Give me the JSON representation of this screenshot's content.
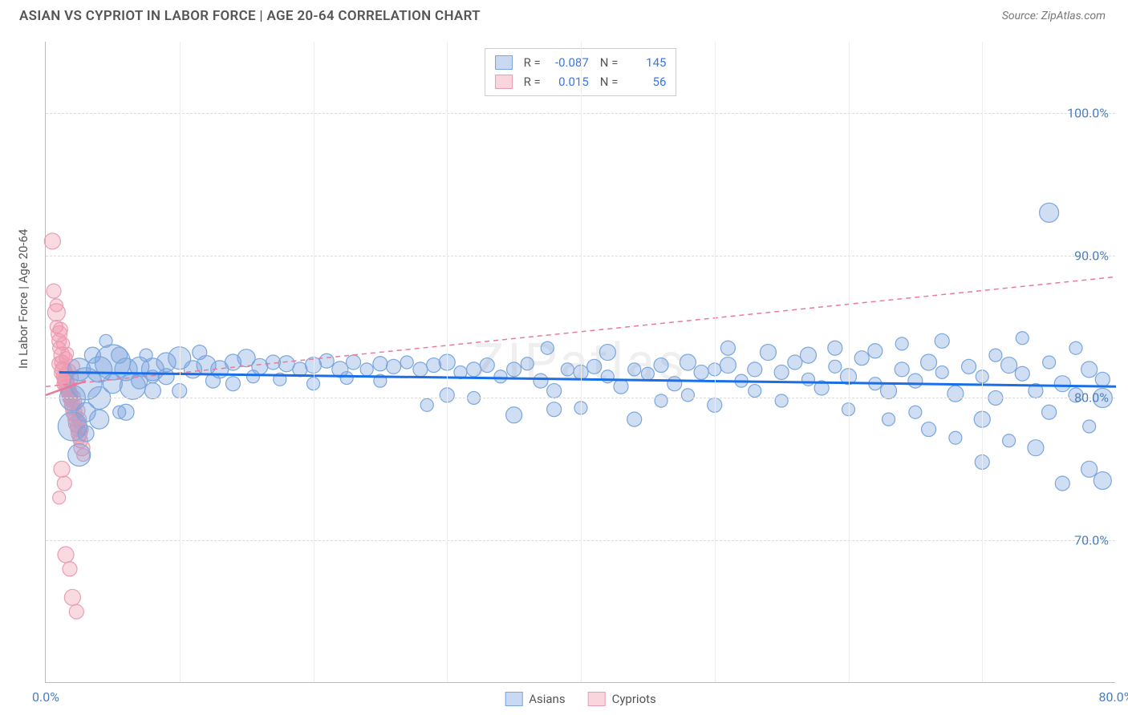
{
  "header": {
    "title": "ASIAN VS CYPRIOT IN LABOR FORCE | AGE 20-64 CORRELATION CHART",
    "source": "Source: ZipAtlas.com"
  },
  "chart": {
    "type": "scatter",
    "yaxis_title": "In Labor Force | Age 20-64",
    "watermark": "ZIPatlas",
    "background_color": "#ffffff",
    "grid_color": "#dddddd",
    "xlim": [
      0,
      80
    ],
    "ylim": [
      60,
      105
    ],
    "yticks": [
      {
        "value": 70.0,
        "label": "70.0%"
      },
      {
        "value": 80.0,
        "label": "80.0%"
      },
      {
        "value": 90.0,
        "label": "90.0%"
      },
      {
        "value": 100.0,
        "label": "100.0%"
      }
    ],
    "xticks": [
      {
        "value": 0.0,
        "label": "0.0%"
      },
      {
        "value": 80.0,
        "label": "80.0%"
      }
    ],
    "xgrid_step": 10,
    "series": [
      {
        "name": "Asians",
        "color_fill": "rgba(120,160,220,0.35)",
        "color_stroke": "#7aa6de",
        "trend_color": "#1a6fe8",
        "trend_dash": "none",
        "r_value": "-0.087",
        "n_value": "145",
        "trend": {
          "x1": 1,
          "y1": 81.8,
          "x2": 80,
          "y2": 80.8
        },
        "points": [
          [
            2,
            78,
            18
          ],
          [
            2,
            80,
            16
          ],
          [
            2.5,
            82,
            14
          ],
          [
            3,
            81,
            20
          ],
          [
            3,
            79,
            12
          ],
          [
            3.5,
            83,
            10
          ],
          [
            4,
            82,
            16
          ],
          [
            4,
            80,
            14
          ],
          [
            4.5,
            84,
            8
          ],
          [
            5,
            82.5,
            22
          ],
          [
            5,
            81,
            12
          ],
          [
            5.5,
            83,
            10
          ],
          [
            6,
            82,
            14
          ],
          [
            6,
            79,
            10
          ],
          [
            6.5,
            80.8,
            16
          ],
          [
            7,
            82.2,
            12
          ],
          [
            7,
            81.2,
            10
          ],
          [
            7.5,
            83,
            8
          ],
          [
            8,
            82,
            14
          ],
          [
            8,
            80.5,
            10
          ],
          [
            9,
            82.5,
            12
          ],
          [
            9,
            81.5,
            10
          ],
          [
            10,
            82.8,
            14
          ],
          [
            10,
            80.5,
            9
          ],
          [
            11,
            82,
            11
          ],
          [
            11.5,
            83.2,
            9
          ],
          [
            12,
            82.3,
            12
          ],
          [
            12.5,
            81.2,
            9
          ],
          [
            13,
            82,
            11
          ],
          [
            14,
            82.5,
            10
          ],
          [
            14,
            81,
            9
          ],
          [
            15,
            82.8,
            11
          ],
          [
            15.5,
            81.5,
            8
          ],
          [
            16,
            82.2,
            10
          ],
          [
            17,
            82.5,
            9
          ],
          [
            17.5,
            81.3,
            8
          ],
          [
            18,
            82.4,
            10
          ],
          [
            19,
            82,
            9
          ],
          [
            20,
            82.3,
            10
          ],
          [
            20,
            81,
            8
          ],
          [
            21,
            82.6,
            9
          ],
          [
            22,
            82,
            10
          ],
          [
            22.5,
            81.4,
            8
          ],
          [
            23,
            82.5,
            9
          ],
          [
            24,
            82,
            8
          ],
          [
            25,
            82.4,
            9
          ],
          [
            25,
            81.2,
            8
          ],
          [
            26,
            82.2,
            9
          ],
          [
            27,
            82.5,
            8
          ],
          [
            28,
            82,
            9
          ],
          [
            28.5,
            79.5,
            8
          ],
          [
            29,
            82.3,
            9
          ],
          [
            30,
            82.5,
            10
          ],
          [
            30,
            80.2,
            9
          ],
          [
            31,
            81.8,
            8
          ],
          [
            32,
            82,
            9
          ],
          [
            32,
            80,
            8
          ],
          [
            33,
            82.3,
            9
          ],
          [
            34,
            81.5,
            8
          ],
          [
            35,
            82,
            9
          ],
          [
            35,
            78.8,
            10
          ],
          [
            36,
            82.4,
            8
          ],
          [
            37,
            81.2,
            9
          ],
          [
            37.5,
            83.5,
            8
          ],
          [
            38,
            80.5,
            9
          ],
          [
            38,
            79.2,
            9
          ],
          [
            39,
            82,
            8
          ],
          [
            40,
            81.8,
            9
          ],
          [
            40,
            79.3,
            8
          ],
          [
            41,
            82.2,
            9
          ],
          [
            42,
            81.5,
            8
          ],
          [
            42,
            83.2,
            10
          ],
          [
            43,
            80.8,
            9
          ],
          [
            44,
            82,
            8
          ],
          [
            44,
            78.5,
            9
          ],
          [
            45,
            81.7,
            8
          ],
          [
            46,
            82.3,
            9
          ],
          [
            46,
            79.8,
            8
          ],
          [
            47,
            81,
            9
          ],
          [
            48,
            82.5,
            10
          ],
          [
            48,
            80.2,
            8
          ],
          [
            49,
            81.8,
            9
          ],
          [
            50,
            82,
            8
          ],
          [
            50,
            79.5,
            9
          ],
          [
            51,
            82.3,
            10
          ],
          [
            51,
            83.5,
            9
          ],
          [
            52,
            81.2,
            8
          ],
          [
            53,
            82,
            9
          ],
          [
            53,
            80.5,
            8
          ],
          [
            54,
            83.2,
            10
          ],
          [
            55,
            81.8,
            9
          ],
          [
            55,
            79.8,
            8
          ],
          [
            56,
            82.5,
            9
          ],
          [
            57,
            81.3,
            8
          ],
          [
            57,
            83,
            10
          ],
          [
            58,
            80.7,
            9
          ],
          [
            59,
            82.2,
            8
          ],
          [
            59,
            83.5,
            9
          ],
          [
            60,
            81.5,
            10
          ],
          [
            60,
            79.2,
            8
          ],
          [
            61,
            82.8,
            9
          ],
          [
            62,
            81,
            8
          ],
          [
            62,
            83.3,
            9
          ],
          [
            63,
            80.5,
            10
          ],
          [
            63,
            78.5,
            8
          ],
          [
            64,
            82,
            9
          ],
          [
            64,
            83.8,
            8
          ],
          [
            65,
            81.2,
            9
          ],
          [
            65,
            79,
            8
          ],
          [
            66,
            82.5,
            10
          ],
          [
            66,
            77.8,
            9
          ],
          [
            67,
            81.8,
            8
          ],
          [
            67,
            84,
            9
          ],
          [
            68,
            80.3,
            10
          ],
          [
            68,
            77.2,
            8
          ],
          [
            69,
            82.2,
            9
          ],
          [
            70,
            81.5,
            8
          ],
          [
            70,
            78.5,
            10
          ],
          [
            70,
            75.5,
            9
          ],
          [
            71,
            83,
            8
          ],
          [
            71,
            80,
            9
          ],
          [
            72,
            82.3,
            10
          ],
          [
            72,
            77,
            8
          ],
          [
            73,
            81.7,
            9
          ],
          [
            73,
            84.2,
            8
          ],
          [
            74,
            80.5,
            9
          ],
          [
            74,
            76.5,
            10
          ],
          [
            75,
            82.5,
            8
          ],
          [
            75,
            79,
            9
          ],
          [
            75,
            93,
            12
          ],
          [
            76,
            81,
            10
          ],
          [
            76,
            74,
            9
          ],
          [
            77,
            83.5,
            8
          ],
          [
            77,
            80.2,
            9
          ],
          [
            78,
            82,
            10
          ],
          [
            78,
            78,
            8
          ],
          [
            78,
            75,
            10
          ],
          [
            79,
            81.3,
            9
          ],
          [
            79,
            80,
            12
          ],
          [
            79,
            74.2,
            11
          ],
          [
            2.5,
            76,
            14
          ],
          [
            3,
            77.5,
            10
          ],
          [
            4,
            78.5,
            12
          ],
          [
            5.5,
            79,
            8
          ],
          [
            8,
            81.5,
            8
          ]
        ]
      },
      {
        "name": "Cypriots",
        "color_fill": "rgba(240,150,170,0.35)",
        "color_stroke": "#ea9db5",
        "trend_color": "#e87a9a",
        "trend_dash": "6,5",
        "r_value": "0.015",
        "n_value": "56",
        "trend": {
          "x1": 0,
          "y1": 80.8,
          "x2": 80,
          "y2": 88.5
        },
        "points": [
          [
            0.5,
            91,
            10
          ],
          [
            0.6,
            87.5,
            9
          ],
          [
            0.8,
            86,
            11
          ],
          [
            0.8,
            85,
            8
          ],
          [
            1,
            84.5,
            10
          ],
          [
            1,
            84,
            9
          ],
          [
            1,
            83.5,
            8
          ],
          [
            1.2,
            83,
            10
          ],
          [
            1.2,
            82.5,
            9
          ],
          [
            1.3,
            82,
            10
          ],
          [
            1.3,
            81.8,
            11
          ],
          [
            1.4,
            81.5,
            10
          ],
          [
            1.4,
            81.3,
            9
          ],
          [
            1.5,
            81.2,
            10
          ],
          [
            1.5,
            81,
            11
          ],
          [
            1.6,
            80.8,
            10
          ],
          [
            1.6,
            80.6,
            9
          ],
          [
            1.7,
            80.5,
            10
          ],
          [
            1.7,
            80.3,
            8
          ],
          [
            1.8,
            80.2,
            10
          ],
          [
            1.8,
            80,
            9
          ],
          [
            1.9,
            79.8,
            8
          ],
          [
            2,
            79.5,
            10
          ],
          [
            2,
            79.3,
            9
          ],
          [
            2.1,
            79,
            10
          ],
          [
            2.1,
            78.8,
            8
          ],
          [
            2.2,
            78.5,
            9
          ],
          [
            2.3,
            78.2,
            10
          ],
          [
            2.3,
            78,
            8
          ],
          [
            2.4,
            77.8,
            9
          ],
          [
            2.5,
            77.5,
            10
          ],
          [
            2.5,
            77.2,
            8
          ],
          [
            2.6,
            77,
            9
          ],
          [
            2.7,
            76.5,
            10
          ],
          [
            2.8,
            76,
            8
          ],
          [
            1.2,
            75,
            10
          ],
          [
            1.4,
            74,
            9
          ],
          [
            1,
            73,
            8
          ],
          [
            1.5,
            69,
            10
          ],
          [
            1.8,
            68,
            9
          ],
          [
            2,
            66,
            10
          ],
          [
            2.3,
            65,
            9
          ],
          [
            0.8,
            86.5,
            8
          ],
          [
            1.1,
            84.8,
            9
          ],
          [
            1.5,
            82.8,
            8
          ],
          [
            1.9,
            81.4,
            9
          ],
          [
            2.2,
            79.7,
            8
          ],
          [
            2.5,
            78.5,
            9
          ],
          [
            1.3,
            83.8,
            8
          ],
          [
            1.7,
            81.9,
            9
          ],
          [
            2.1,
            80.1,
            8
          ],
          [
            2.4,
            79.1,
            9
          ],
          [
            2.7,
            77.8,
            8
          ],
          [
            2,
            82.2,
            9
          ],
          [
            1.6,
            83.1,
            8
          ],
          [
            1,
            82.4,
            9
          ]
        ]
      }
    ],
    "legend_swatches": [
      {
        "fill": "rgba(120,160,220,0.4)",
        "stroke": "#7aa6de"
      },
      {
        "fill": "rgba(240,150,170,0.4)",
        "stroke": "#ea9db5"
      }
    ]
  }
}
